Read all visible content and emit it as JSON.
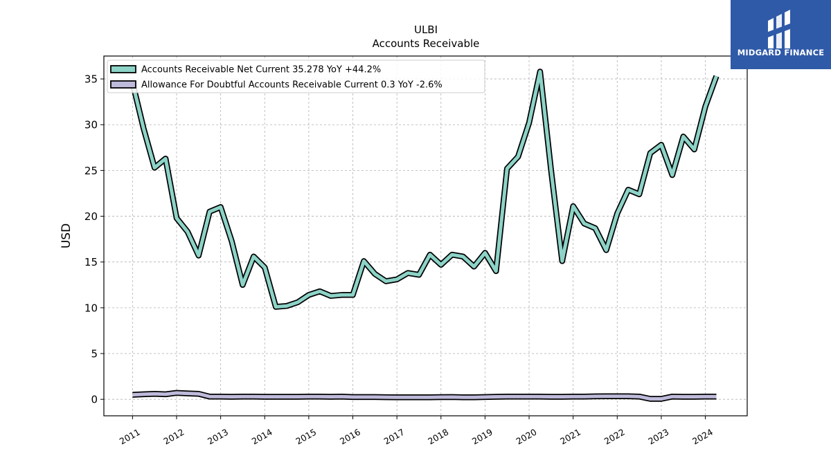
{
  "brand": {
    "name": "MIDGARD FINANCE",
    "bg_color": "#2f5aa8"
  },
  "chart_data": {
    "type": "line",
    "title": "ULBI",
    "subtitle": "Accounts Receivable",
    "ylabel": "USD",
    "xlabel": "",
    "xlim": [
      2010.35,
      2024.95
    ],
    "ylim": [
      -1.8,
      37.5
    ],
    "yticks": [
      0,
      5,
      10,
      15,
      20,
      25,
      30,
      35
    ],
    "xtick_labels": [
      "2011",
      "2012",
      "2013",
      "2014",
      "2015",
      "2016",
      "2017",
      "2018",
      "2019",
      "2020",
      "2021",
      "2022",
      "2023",
      "2024"
    ],
    "grid": true,
    "legend_position": "top-left",
    "series": [
      {
        "name": "Accounts Receivable Net Current",
        "legend_label": "Accounts Receivable Net Current  35.278 YoY +44.2%",
        "color": "#8dd3c7",
        "x": [
          2011.0,
          2011.25,
          2011.5,
          2011.75,
          2012.0,
          2012.25,
          2012.5,
          2012.75,
          2013.0,
          2013.25,
          2013.5,
          2013.75,
          2014.0,
          2014.25,
          2014.5,
          2014.75,
          2015.0,
          2015.25,
          2015.5,
          2015.75,
          2016.0,
          2016.25,
          2016.5,
          2016.75,
          2017.0,
          2017.25,
          2017.5,
          2017.75,
          2018.0,
          2018.25,
          2018.5,
          2018.75,
          2019.0,
          2019.25,
          2019.5,
          2019.75,
          2020.0,
          2020.25,
          2020.5,
          2020.75,
          2021.0,
          2021.25,
          2021.5,
          2021.75,
          2022.0,
          2022.25,
          2022.5,
          2022.75,
          2023.0,
          2023.25,
          2023.5,
          2023.75,
          2024.0,
          2024.25
        ],
        "values": [
          34.6,
          29.6,
          25.3,
          26.3,
          19.8,
          18.3,
          15.7,
          20.5,
          21.0,
          17.3,
          12.5,
          15.6,
          14.4,
          10.1,
          10.2,
          10.6,
          11.4,
          11.8,
          11.3,
          11.4,
          11.4,
          15.1,
          13.7,
          12.9,
          13.1,
          13.8,
          13.6,
          15.8,
          14.7,
          15.8,
          15.6,
          14.5,
          16.0,
          14.0,
          25.2,
          26.5,
          30.2,
          35.8,
          25.0,
          15.1,
          21.1,
          19.2,
          18.7,
          16.3,
          20.3,
          22.9,
          22.4,
          26.9,
          27.8,
          24.5,
          28.7,
          27.3,
          32.0,
          35.3
        ]
      },
      {
        "name": "Allowance For Doubtful Accounts Receivable Current",
        "legend_label": "Allowance For Doubtful Accounts Receivable Current  0.3 YoY -2.6%",
        "color": "#bebada",
        "x": [
          2011.0,
          2011.25,
          2011.5,
          2011.75,
          2012.0,
          2012.25,
          2012.5,
          2012.75,
          2013.0,
          2013.25,
          2013.5,
          2013.75,
          2014.0,
          2014.25,
          2014.5,
          2014.75,
          2015.0,
          2015.25,
          2015.5,
          2015.75,
          2016.0,
          2016.25,
          2016.5,
          2016.75,
          2017.0,
          2017.25,
          2017.5,
          2017.75,
          2018.0,
          2018.25,
          2018.5,
          2018.75,
          2019.0,
          2019.25,
          2019.5,
          2019.75,
          2020.0,
          2020.25,
          2020.5,
          2020.75,
          2021.0,
          2021.25,
          2021.5,
          2021.75,
          2022.0,
          2022.25,
          2022.5,
          2022.75,
          2023.0,
          2023.25,
          2023.5,
          2023.75,
          2024.0,
          2024.25
        ],
        "values": [
          0.5,
          0.55,
          0.6,
          0.55,
          0.7,
          0.65,
          0.6,
          0.3,
          0.3,
          0.28,
          0.3,
          0.3,
          0.28,
          0.28,
          0.28,
          0.28,
          0.3,
          0.3,
          0.28,
          0.3,
          0.25,
          0.25,
          0.25,
          0.23,
          0.22,
          0.22,
          0.22,
          0.22,
          0.24,
          0.25,
          0.22,
          0.22,
          0.25,
          0.28,
          0.3,
          0.3,
          0.3,
          0.3,
          0.28,
          0.28,
          0.3,
          0.3,
          0.32,
          0.33,
          0.33,
          0.33,
          0.3,
          0.05,
          0.05,
          0.3,
          0.28,
          0.28,
          0.3,
          0.3
        ]
      }
    ]
  }
}
